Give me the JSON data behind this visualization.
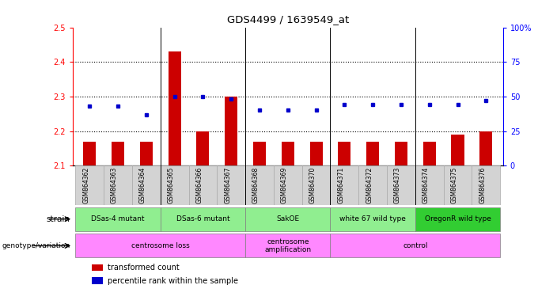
{
  "title": "GDS4499 / 1639549_at",
  "samples": [
    "GSM864362",
    "GSM864363",
    "GSM864364",
    "GSM864365",
    "GSM864366",
    "GSM864367",
    "GSM864368",
    "GSM864369",
    "GSM864370",
    "GSM864371",
    "GSM864372",
    "GSM864373",
    "GSM864374",
    "GSM864375",
    "GSM864376"
  ],
  "bar_values": [
    2.17,
    2.17,
    2.17,
    2.43,
    2.2,
    2.3,
    2.17,
    2.17,
    2.17,
    2.17,
    2.17,
    2.17,
    2.17,
    2.19,
    2.2
  ],
  "dot_values": [
    0.43,
    0.43,
    0.37,
    0.5,
    0.5,
    0.48,
    0.4,
    0.4,
    0.4,
    0.44,
    0.44,
    0.44,
    0.44,
    0.44,
    0.47
  ],
  "bar_bottom": 2.1,
  "ylim_left": [
    2.1,
    2.5
  ],
  "ylim_right": [
    0.0,
    1.0
  ],
  "yticks_left": [
    2.1,
    2.2,
    2.3,
    2.4,
    2.5
  ],
  "yticks_right": [
    0.0,
    0.25,
    0.5,
    0.75,
    1.0
  ],
  "ytick_labels_right": [
    "0",
    "25",
    "50",
    "75",
    "100%"
  ],
  "bar_color": "#cc0000",
  "dot_color": "#0000cc",
  "strain_groups": [
    {
      "text": "DSas-4 mutant",
      "start": 0,
      "end": 2,
      "color": "#90ee90"
    },
    {
      "text": "DSas-6 mutant",
      "start": 3,
      "end": 5,
      "color": "#90ee90"
    },
    {
      "text": "SakOE",
      "start": 6,
      "end": 8,
      "color": "#90ee90"
    },
    {
      "text": "white 67 wild type",
      "start": 9,
      "end": 11,
      "color": "#90ee90"
    },
    {
      "text": "OregonR wild type",
      "start": 12,
      "end": 14,
      "color": "#32cd32"
    }
  ],
  "geno_groups": [
    {
      "text": "centrosome loss",
      "start": 0,
      "end": 5,
      "color": "#ff88ff"
    },
    {
      "text": "centrosome\namplification",
      "start": 6,
      "end": 8,
      "color": "#ff88ff"
    },
    {
      "text": "control",
      "start": 9,
      "end": 14,
      "color": "#ff88ff"
    }
  ],
  "group_boundaries": [
    2.5,
    5.5,
    8.5,
    11.5
  ],
  "xlim": [
    -0.6,
    14.6
  ],
  "sample_bg_color": "#d3d3d3",
  "sample_border_color": "#aaaaaa"
}
